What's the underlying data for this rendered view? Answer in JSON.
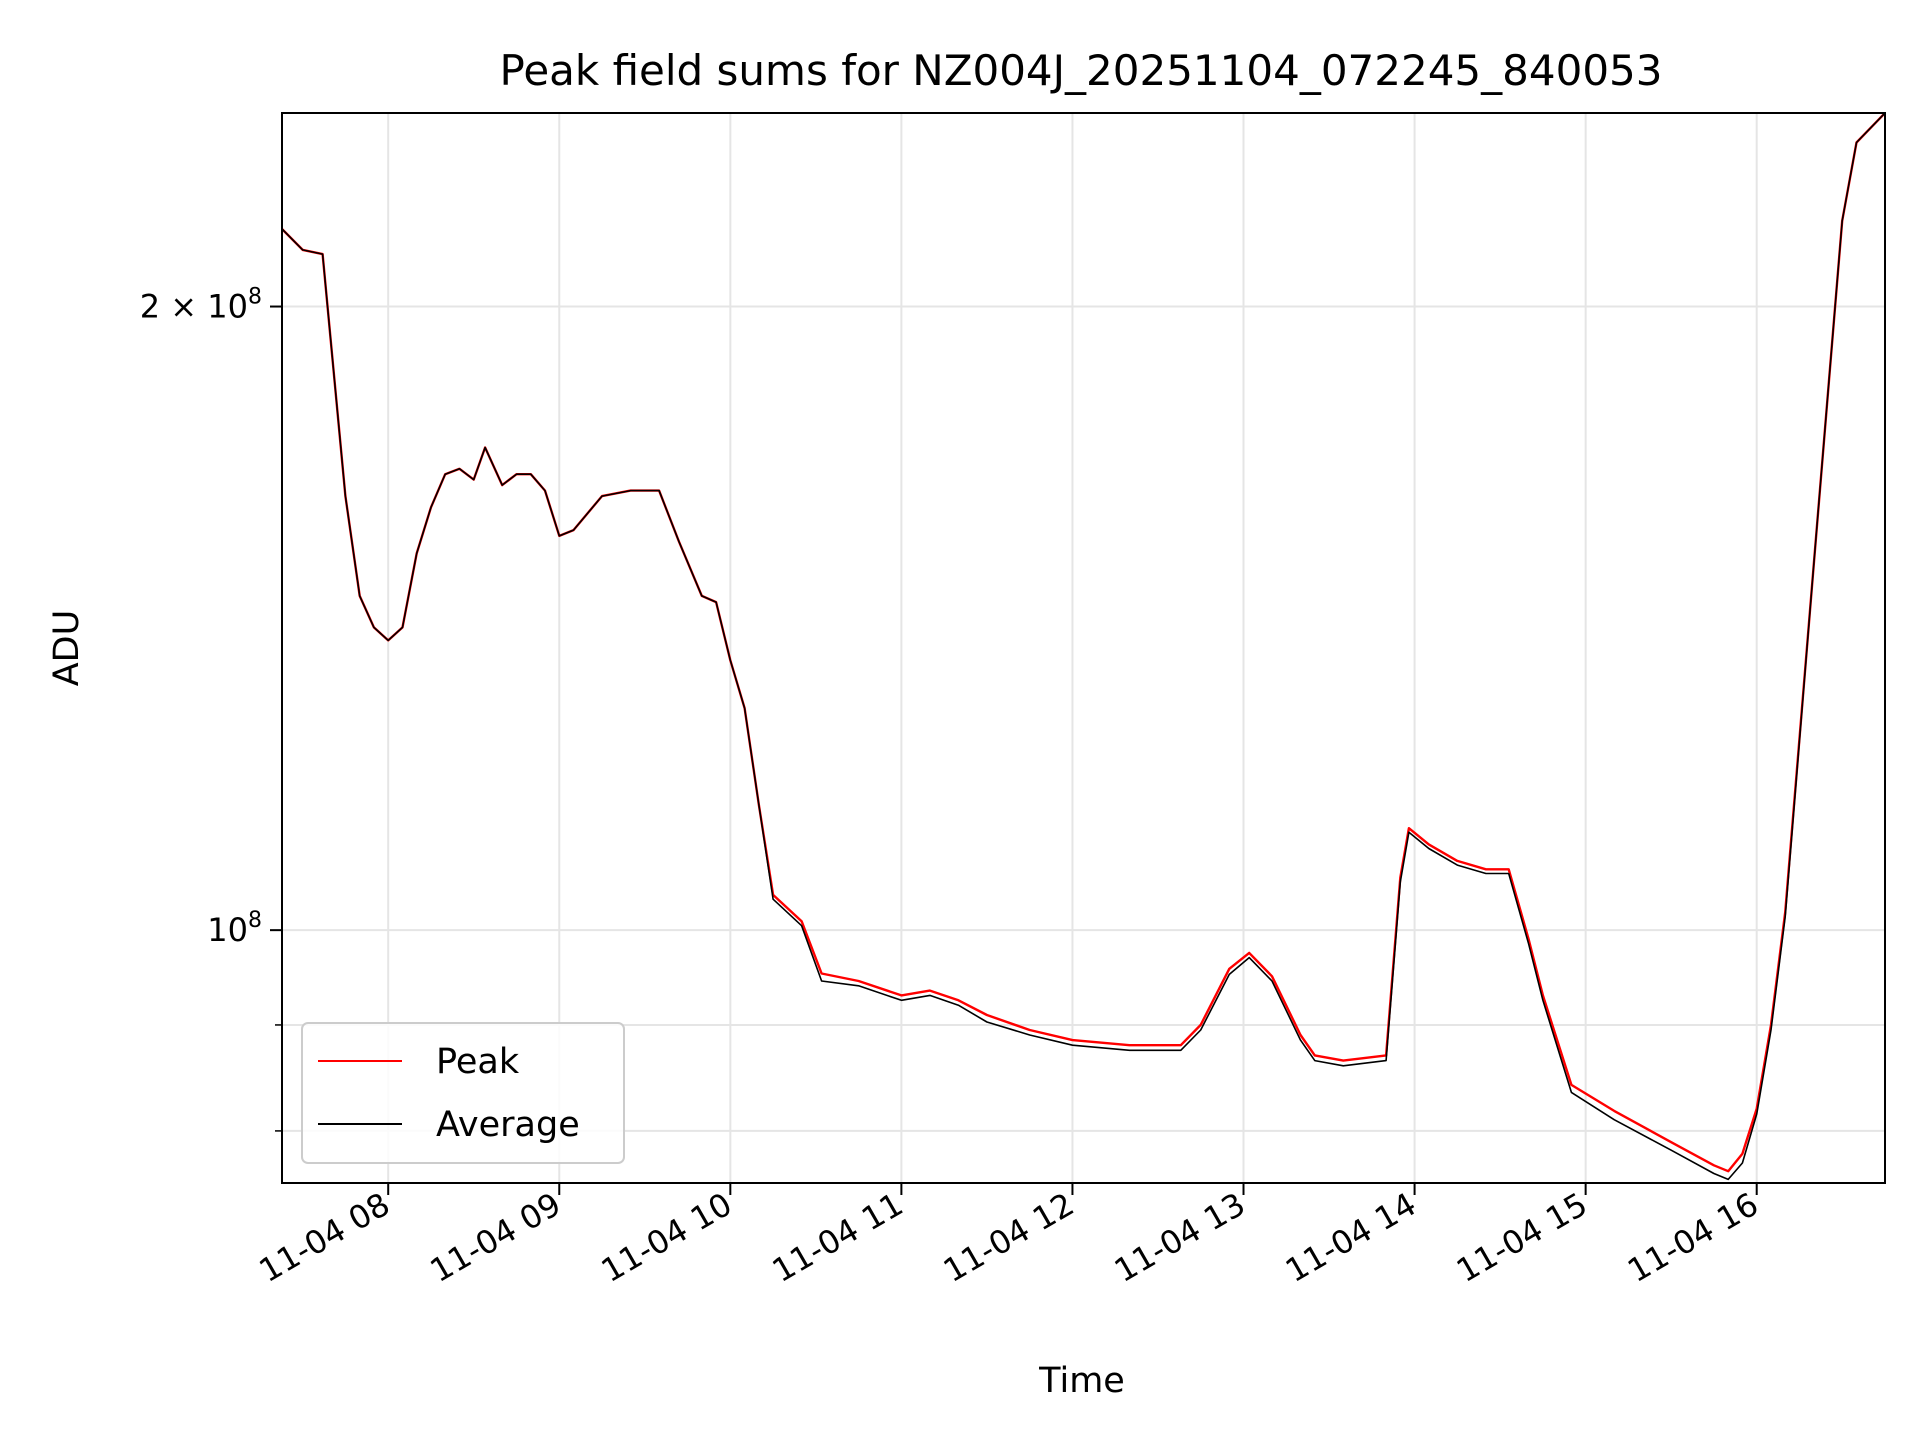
{
  "chart_data": {
    "type": "line",
    "title": "Peak field sums for NZ004J_20251104_072245_840053",
    "xlabel": "Time",
    "ylabel": "ADU",
    "xlim": [
      "2025-11-04 07:22:45",
      "2025-11-04 16:45:00"
    ],
    "ylim": [
      75500000,
      248000000
    ],
    "yscale": "log",
    "grid": true,
    "legend_position": "lower-left",
    "x_ticks": [
      "11-04 08",
      "11-04 09",
      "11-04 10",
      "11-04 11",
      "11-04 12",
      "11-04 13",
      "11-04 14",
      "11-04 15",
      "11-04 16"
    ],
    "y_ticks": [
      {
        "value": 200000000,
        "label_mantissa": "2",
        "label_base": "10",
        "label_exp": "8"
      },
      {
        "value": 100000000,
        "label_mantissa": "",
        "label_base": "10",
        "label_exp": "8"
      }
    ],
    "y_minor_ticks": [
      90000000,
      80000000
    ],
    "x": [
      "2025-11-04 07:22:45",
      "2025-11-04 07:30",
      "2025-11-04 07:37",
      "2025-11-04 07:45",
      "2025-11-04 07:50",
      "2025-11-04 07:55",
      "2025-11-04 08:00",
      "2025-11-04 08:05",
      "2025-11-04 08:10",
      "2025-11-04 08:15",
      "2025-11-04 08:20",
      "2025-11-04 08:25",
      "2025-11-04 08:30",
      "2025-11-04 08:34",
      "2025-11-04 08:40",
      "2025-11-04 08:45",
      "2025-11-04 08:50",
      "2025-11-04 08:55",
      "2025-11-04 09:00",
      "2025-11-04 09:05",
      "2025-11-04 09:15",
      "2025-11-04 09:25",
      "2025-11-04 09:35",
      "2025-11-04 09:42",
      "2025-11-04 09:50",
      "2025-11-04 09:55",
      "2025-11-04 10:00",
      "2025-11-04 10:05",
      "2025-11-04 10:10",
      "2025-11-04 10:15",
      "2025-11-04 10:25",
      "2025-11-04 10:32",
      "2025-11-04 10:45",
      "2025-11-04 11:00",
      "2025-11-04 11:10",
      "2025-11-04 11:20",
      "2025-11-04 11:30",
      "2025-11-04 11:45",
      "2025-11-04 12:00",
      "2025-11-04 12:20",
      "2025-11-04 12:38",
      "2025-11-04 12:45",
      "2025-11-04 12:55",
      "2025-11-04 13:02",
      "2025-11-04 13:10",
      "2025-11-04 13:20",
      "2025-11-04 13:25",
      "2025-11-04 13:35",
      "2025-11-04 13:50",
      "2025-11-04 13:55",
      "2025-11-04 13:58",
      "2025-11-04 14:05",
      "2025-11-04 14:15",
      "2025-11-04 14:25",
      "2025-11-04 14:33",
      "2025-11-04 14:40",
      "2025-11-04 14:45",
      "2025-11-04 14:55",
      "2025-11-04 15:10",
      "2025-11-04 15:30",
      "2025-11-04 15:45",
      "2025-11-04 15:50",
      "2025-11-04 15:55",
      "2025-11-04 16:00",
      "2025-11-04 16:05",
      "2025-11-04 16:10",
      "2025-11-04 16:20",
      "2025-11-04 16:30",
      "2025-11-04 16:35",
      "2025-11-04 16:45"
    ],
    "series": [
      {
        "name": "Peak",
        "color": "#ff0000",
        "values": [
          218000000.0,
          213000000.0,
          212000000.0,
          162000000.0,
          145000000.0,
          140000000.0,
          138000000.0,
          140000000.0,
          152000000.0,
          160000000.0,
          166000000.0,
          167000000.0,
          165000000.0,
          171000000.0,
          164000000.0,
          166000000.0,
          166000000.0,
          163000000.0,
          155000000.0,
          156000000.0,
          162000000.0,
          163000000.0,
          163000000.0,
          154000000.0,
          145000000.0,
          144000000.0,
          135000000.0,
          128000000.0,
          115000000.0,
          104000000.0,
          101000000.0,
          95300000.0,
          94500000.0,
          93000000.0,
          93500000.0,
          92500000.0,
          91000000.0,
          89500000.0,
          88500000.0,
          88000000.0,
          88000000.0,
          90000000.0,
          95800000.0,
          97500000.0,
          95000000.0,
          89000000.0,
          87000000.0,
          86500000.0,
          87000000.0,
          106000000.0,
          112000000.0,
          110000000.0,
          108000000.0,
          107000000.0,
          107000000.0,
          99000000.0,
          93000000.0,
          84200000.0,
          81800000.0,
          79000000.0,
          77000000.0,
          76500000.0,
          78000000.0,
          82000000.0,
          90000000.0,
          102000000.0,
          150000000.0,
          220000000.0,
          240000000.0,
          248000000.0
        ]
      },
      {
        "name": "Average",
        "color": "#000000",
        "values": [
          218000000.0,
          213000000.0,
          212000000.0,
          162000000.0,
          145000000.0,
          140000000.0,
          138000000.0,
          140000000.0,
          152000000.0,
          160000000.0,
          166000000.0,
          167000000.0,
          165000000.0,
          171000000.0,
          164000000.0,
          166000000.0,
          166000000.0,
          163000000.0,
          155000000.0,
          156000000.0,
          162000000.0,
          163000000.0,
          163000000.0,
          154000000.0,
          145000000.0,
          144000000.0,
          135000000.0,
          128000000.0,
          115000000.0,
          103500000.0,
          100500000.0,
          94500000.0,
          94000000.0,
          92500000.0,
          93000000.0,
          92000000.0,
          90300000.0,
          89000000.0,
          88000000.0,
          87500000.0,
          87500000.0,
          89500000.0,
          95200000.0,
          97000000.0,
          94500000.0,
          88500000.0,
          86500000.0,
          86000000.0,
          86500000.0,
          105500000.0,
          111500000.0,
          109500000.0,
          107500000.0,
          106500000.0,
          106500000.0,
          98500000.0,
          92500000.0,
          83500000.0,
          81000000.0,
          78300000.0,
          76300000.0,
          75800000.0,
          77200000.0,
          81500000.0,
          89500000.0,
          101500000.0,
          150000000.0,
          220000000.0,
          240000000.0,
          248000000.0
        ]
      }
    ]
  }
}
